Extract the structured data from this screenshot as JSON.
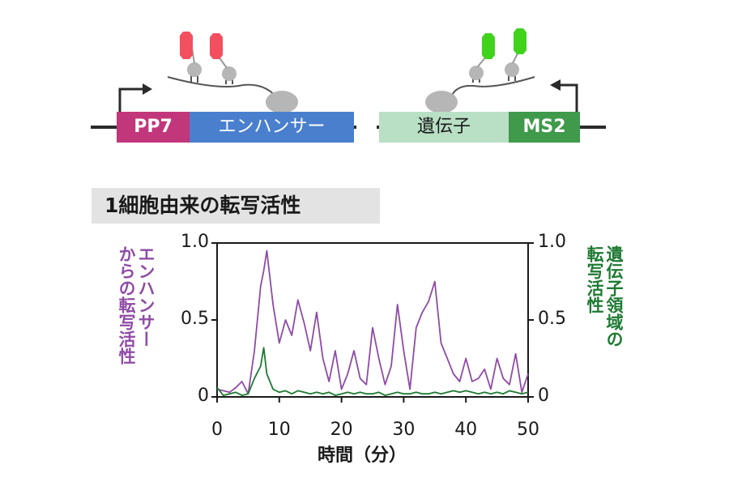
{
  "diagram": {
    "left_construct": {
      "tag": "PP7",
      "region": "エンハンサー"
    },
    "right_construct": {
      "region": "遺伝子",
      "tag": "MS2"
    },
    "colors": {
      "pp7": "#c2367b",
      "enhancer": "#4a7fce",
      "gene": "#b9dfc4",
      "ms2": "#3f9a4b",
      "red_tag": "#f44f5f",
      "green_tag": "#41d21c",
      "polymerase": "#b6b6b6"
    }
  },
  "section_title": "1細胞由来の転写活性",
  "chart_data": {
    "type": "line",
    "xlabel": "時間（分）",
    "ylabel_left": "エンハンサーからの転写活性",
    "ylabel_left_lines": [
      "エンハンサー",
      "からの転写活性"
    ],
    "ylabel_right": "遺伝子領域の転写活性",
    "ylabel_right_lines": [
      "遺伝子領域の",
      "転写活性"
    ],
    "xlim": [
      0,
      50
    ],
    "ylim": [
      0,
      1.0
    ],
    "xticks": [
      0,
      10,
      20,
      30,
      40,
      50
    ],
    "yticks": [
      0,
      0.5,
      1.0
    ],
    "ytick_labels": [
      "0",
      "0.5",
      "1.0"
    ],
    "x": [
      0,
      1,
      2,
      3,
      4,
      5,
      6,
      7,
      7.5,
      8,
      9,
      10,
      11,
      12,
      13,
      14,
      15,
      16,
      17,
      18,
      19,
      20,
      21,
      22,
      23,
      24,
      25,
      26,
      27,
      28,
      29,
      30,
      31,
      32,
      33,
      34,
      35,
      36,
      37,
      38,
      39,
      40,
      41,
      42,
      43,
      44,
      45,
      46,
      47,
      48,
      49,
      50
    ],
    "series": [
      {
        "name": "エンハンサー",
        "axis": "left",
        "color": "#8f4ba6",
        "values": [
          0.05,
          0.04,
          0.03,
          0.06,
          0.1,
          0.02,
          0.3,
          0.72,
          0.82,
          0.95,
          0.6,
          0.35,
          0.5,
          0.4,
          0.63,
          0.48,
          0.3,
          0.55,
          0.25,
          0.1,
          0.3,
          0.05,
          0.15,
          0.3,
          0.12,
          0.08,
          0.45,
          0.25,
          0.08,
          0.2,
          0.6,
          0.3,
          0.05,
          0.45,
          0.55,
          0.62,
          0.75,
          0.35,
          0.25,
          0.15,
          0.1,
          0.25,
          0.1,
          0.12,
          0.18,
          0.05,
          0.25,
          0.12,
          0.08,
          0.28,
          0.03,
          0.15
        ]
      },
      {
        "name": "遺伝子領域",
        "axis": "right",
        "color": "#1e7a32",
        "values": [
          0.06,
          0.01,
          0.02,
          0.03,
          0.01,
          0.02,
          0.12,
          0.2,
          0.32,
          0.15,
          0.05,
          0.03,
          0.04,
          0.02,
          0.04,
          0.03,
          0.02,
          0.03,
          0.02,
          0.03,
          0.01,
          0.02,
          0.03,
          0.02,
          0.03,
          0.02,
          0.02,
          0.03,
          0.01,
          0.02,
          0.03,
          0.02,
          0.02,
          0.03,
          0.02,
          0.02,
          0.03,
          0.02,
          0.03,
          0.04,
          0.03,
          0.04,
          0.03,
          0.02,
          0.03,
          0.02,
          0.03,
          0.02,
          0.04,
          0.03,
          0.02,
          0.03
        ]
      }
    ]
  }
}
